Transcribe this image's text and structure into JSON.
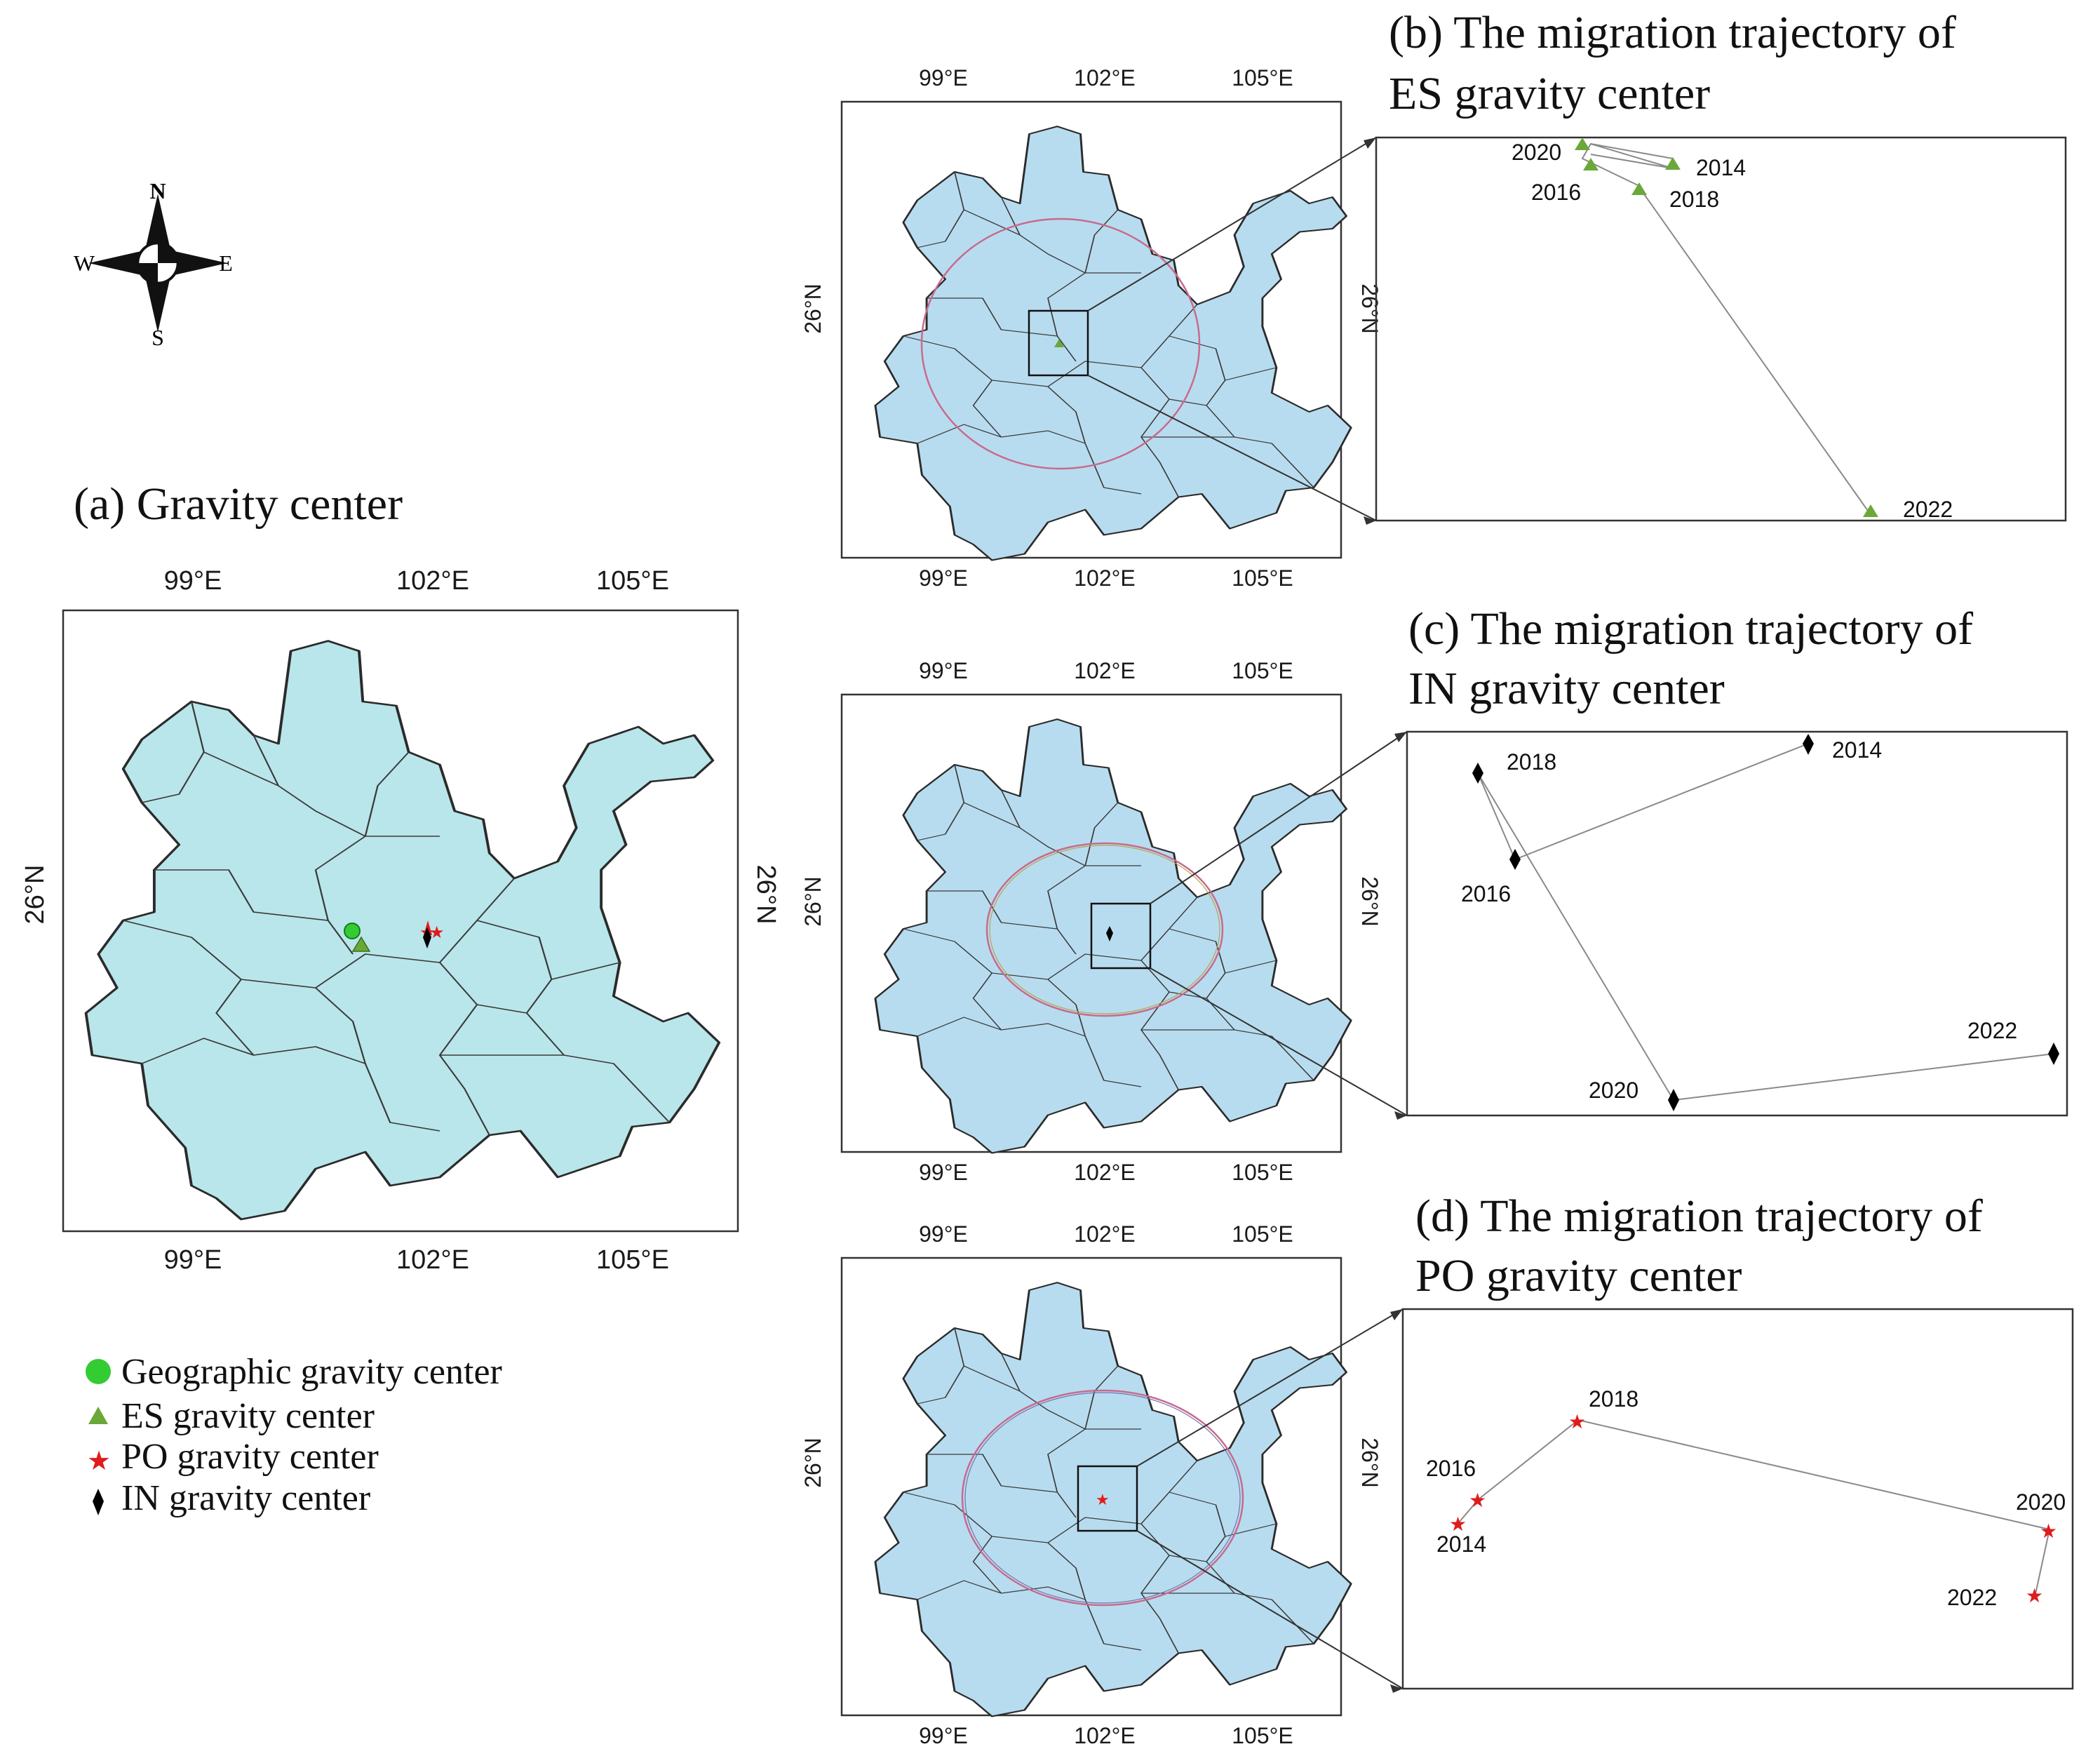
{
  "compass": {
    "n": "N",
    "s": "S",
    "e": "E",
    "w": "W"
  },
  "panel_a": {
    "title": "(a) Gravity center",
    "lon_ticks": [
      "99°E",
      "102°E",
      "105°E"
    ],
    "lat_tick": "26°N"
  },
  "legend": [
    {
      "label": "Geographic gravity center",
      "symbol": "circle",
      "color": "#33cc33"
    },
    {
      "label": "ES gravity center",
      "symbol": "triangle",
      "color": "#6aa83a"
    },
    {
      "label": "PO gravity center",
      "symbol": "star",
      "color": "#e01b1b"
    },
    {
      "label": "IN gravity center",
      "symbol": "diamond",
      "color": "#000000"
    }
  ],
  "panel_b": {
    "title_line1": "(b) The migration trajectory of",
    "title_line2": "ES gravity center",
    "lon_ticks": [
      "99°E",
      "102°E",
      "105°E"
    ],
    "lat_tick": "26°N",
    "years": [
      "2014",
      "2016",
      "2018",
      "2020",
      "2022"
    ]
  },
  "panel_c": {
    "title_line1": "(c) The migration trajectory of",
    "title_line2": "IN gravity center",
    "lon_ticks": [
      "99°E",
      "102°E",
      "105°E"
    ],
    "lat_tick": "26°N",
    "years": [
      "2014",
      "2016",
      "2018",
      "2020",
      "2022"
    ]
  },
  "panel_d": {
    "title_line1": "(d) The migration trajectory of",
    "title_line2": "PO gravity center",
    "lon_ticks": [
      "99°E",
      "102°E",
      "105°E"
    ],
    "lat_tick": "26°N",
    "years": [
      "2014",
      "2016",
      "2018",
      "2020",
      "2022"
    ]
  },
  "colors": {
    "map_a": "#b9e6ea",
    "map_bcd": "#b8dcef",
    "ellipse": "#c76b8e",
    "es": "#6aa83a",
    "po": "#e01b1b",
    "in": "#000000",
    "geo": "#33cc33"
  }
}
